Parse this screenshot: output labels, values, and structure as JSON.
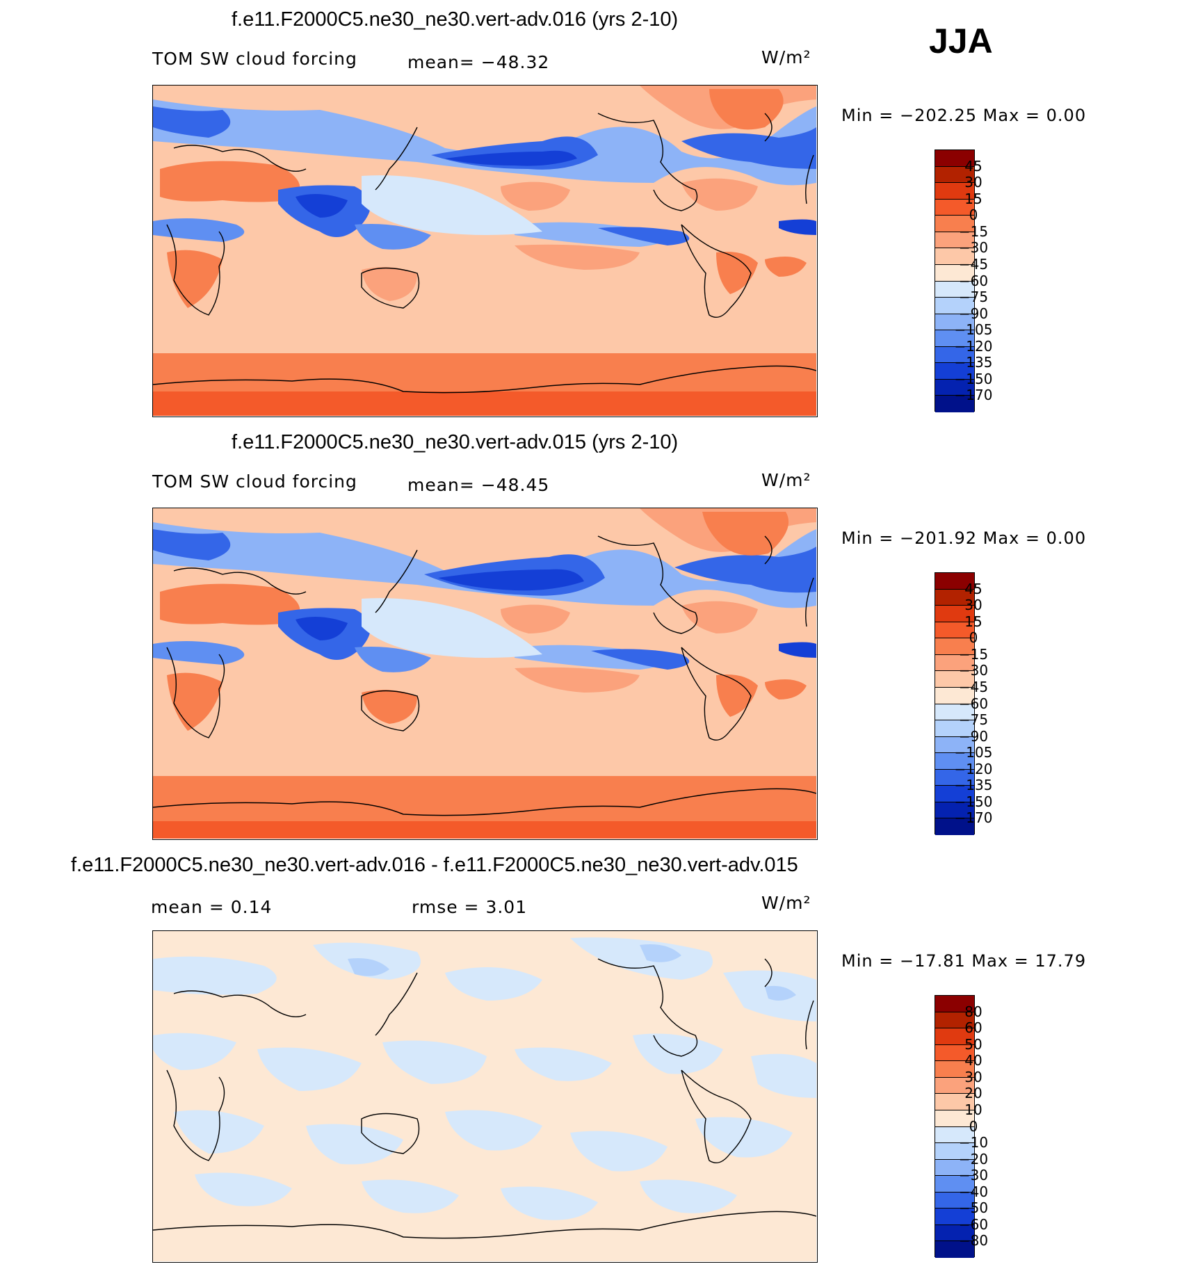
{
  "season": "JJA",
  "panels": [
    {
      "title": "f.e11.F2000C5.ne30_ne30.vert-adv.016 (yrs 2-10)",
      "variable": "TOM SW cloud forcing",
      "stat_left": "mean=  −48.32",
      "stat_right": "",
      "units": "W/m²",
      "minmax": "Min  =  −202.25  Max  =     0.00",
      "palette": "abs",
      "levels": [
        "45",
        "30",
        "15",
        "0",
        "−15",
        "−30",
        "−45",
        "−60",
        "−75",
        "−90",
        "−105",
        "−120",
        "−135",
        "−150",
        "−170"
      ]
    },
    {
      "title": "f.e11.F2000C5.ne30_ne30.vert-adv.015 (yrs 2-10)",
      "variable": "TOM SW cloud forcing",
      "stat_left": "mean=  −48.45",
      "stat_right": "",
      "units": "W/m²",
      "minmax": "Min  =  −201.92  Max  =     0.00",
      "palette": "abs",
      "levels": [
        "45",
        "30",
        "15",
        "0",
        "−15",
        "−30",
        "−45",
        "−60",
        "−75",
        "−90",
        "−105",
        "−120",
        "−135",
        "−150",
        "−170"
      ]
    },
    {
      "title": "f.e11.F2000C5.ne30_ne30.vert-adv.016 - f.e11.F2000C5.ne30_ne30.vert-adv.015",
      "variable": "mean  =     0.14",
      "stat_left": "",
      "stat_right": "rmse  =     3.01",
      "units": "W/m²",
      "minmax": "Min  =  −17.81  Max  =   17.79",
      "palette": "diff",
      "levels": [
        "80",
        "60",
        "50",
        "40",
        "30",
        "20",
        "10",
        "0",
        "−10",
        "−20",
        "−30",
        "−40",
        "−50",
        "−60",
        "−80"
      ]
    }
  ],
  "colors": {
    "scale": [
      "#8b0000",
      "#b22200",
      "#e03a10",
      "#f45a2a",
      "#f87f4e",
      "#fba27c",
      "#fdc8a8",
      "#fde8d4",
      "#d6e8fb",
      "#b4d2fb",
      "#8db3f7",
      "#5f8ff2",
      "#3466e8",
      "#143fd6",
      "#0422b0",
      "#00118a"
    ]
  },
  "chart_data": [
    {
      "type": "heatmap",
      "title": "f.e11.F2000C5.ne30_ne30.vert-adv.016 (yrs 2-10)",
      "field": "TOM SW cloud forcing",
      "units": "W/m²",
      "season": "JJA",
      "mean": -48.32,
      "min": -202.25,
      "max": 0.0,
      "contour_levels": [
        -170,
        -150,
        -135,
        -120,
        -105,
        -90,
        -75,
        -60,
        -45,
        -30,
        -15,
        0,
        15,
        30,
        45
      ]
    },
    {
      "type": "heatmap",
      "title": "f.e11.F2000C5.ne30_ne30.vert-adv.015 (yrs 2-10)",
      "field": "TOM SW cloud forcing",
      "units": "W/m²",
      "season": "JJA",
      "mean": -48.45,
      "min": -201.92,
      "max": 0.0,
      "contour_levels": [
        -170,
        -150,
        -135,
        -120,
        -105,
        -90,
        -75,
        -60,
        -45,
        -30,
        -15,
        0,
        15,
        30,
        45
      ]
    },
    {
      "type": "heatmap",
      "title": "f.e11.F2000C5.ne30_ne30.vert-adv.016 - f.e11.F2000C5.ne30_ne30.vert-adv.015",
      "units": "W/m²",
      "season": "JJA",
      "mean": 0.14,
      "rmse": 3.01,
      "min": -17.81,
      "max": 17.79,
      "contour_levels": [
        -80,
        -60,
        -50,
        -40,
        -30,
        -20,
        -10,
        0,
        10,
        20,
        30,
        40,
        50,
        60,
        80
      ]
    }
  ]
}
